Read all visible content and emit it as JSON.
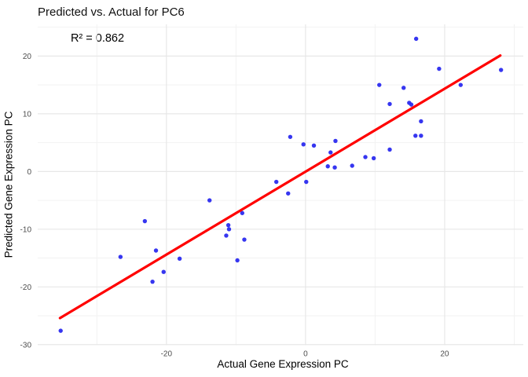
{
  "chart_data": {
    "type": "scatter",
    "title": "Predicted vs. Actual for PC6",
    "annotation": {
      "text": "R² = 0.862",
      "x": -30,
      "y": 23.1
    },
    "xlabel": "Actual Gene Expression PC",
    "ylabel": "Predicted Gene Expression PC",
    "xlim": [
      -38.5,
      31.3
    ],
    "ylim": [
      -30.1,
      25.5
    ],
    "x_ticks": [
      -20,
      0,
      20
    ],
    "y_ticks": [
      20,
      10,
      0,
      -10,
      -20,
      -30
    ],
    "x_minor_ticks": [
      -30,
      -10,
      10,
      30
    ],
    "y_minor_ticks": [
      25,
      15,
      5,
      -5,
      -15,
      -25
    ],
    "grid": true,
    "legend": "none",
    "points": [
      [
        15.9,
        23.0
      ],
      [
        19.2,
        17.8
      ],
      [
        28.1,
        17.6
      ],
      [
        10.6,
        15.0
      ],
      [
        22.3,
        15.0
      ],
      [
        14.1,
        14.5
      ],
      [
        12.1,
        11.7
      ],
      [
        14.9,
        11.9
      ],
      [
        15.2,
        11.6
      ],
      [
        16.6,
        8.7
      ],
      [
        15.8,
        6.2
      ],
      [
        16.6,
        6.2
      ],
      [
        -2.2,
        6.0
      ],
      [
        -0.3,
        4.7
      ],
      [
        1.2,
        4.5
      ],
      [
        4.3,
        5.3
      ],
      [
        3.6,
        3.3
      ],
      [
        12.1,
        3.8
      ],
      [
        8.6,
        2.5
      ],
      [
        9.8,
        2.3
      ],
      [
        3.2,
        0.9
      ],
      [
        4.2,
        0.7
      ],
      [
        6.7,
        1.0
      ],
      [
        -4.2,
        -1.8
      ],
      [
        0.1,
        -1.8
      ],
      [
        -2.5,
        -3.8
      ],
      [
        -13.8,
        -5.0
      ],
      [
        -9.1,
        -7.2
      ],
      [
        -23.1,
        -8.6
      ],
      [
        -11.1,
        -9.3
      ],
      [
        -11.0,
        -10.0
      ],
      [
        -11.4,
        -11.1
      ],
      [
        -8.8,
        -11.8
      ],
      [
        -21.5,
        -13.7
      ],
      [
        -26.6,
        -14.8
      ],
      [
        -18.1,
        -15.1
      ],
      [
        -9.8,
        -15.4
      ],
      [
        -20.4,
        -17.4
      ],
      [
        -22.0,
        -19.1
      ],
      [
        -35.2,
        -27.6
      ]
    ],
    "regression_line": {
      "x1": -35.3,
      "y1": -25.4,
      "x2": 28.0,
      "y2": 20.1
    },
    "colors": {
      "point": "#2B2BEF",
      "line": "#FF0000",
      "grid_major": "#E7E7E7",
      "grid_minor": "#F2F2F2",
      "tick_text": "#4D4D4D",
      "title_text": "#111111"
    }
  }
}
